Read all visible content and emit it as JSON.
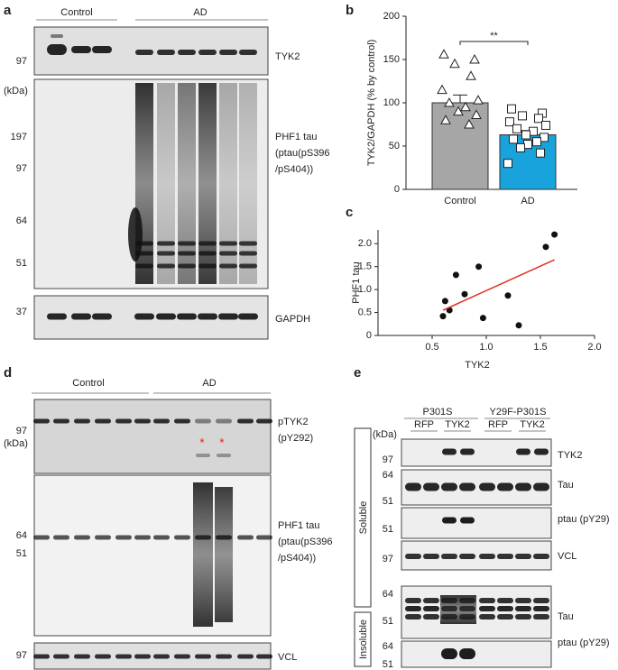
{
  "panel_a": {
    "letter": "a",
    "groups": [
      "Control",
      "AD"
    ],
    "kda": "(kDa)",
    "rows": [
      {
        "label_lines": [
          "TYK2"
        ],
        "markers": [
          97
        ]
      },
      {
        "label_lines": [
          "PHF1 tau",
          "(ptau(pS396",
          "/pS404))"
        ],
        "markers": [
          197,
          97,
          64,
          51
        ]
      },
      {
        "label_lines": [
          "GAPDH"
        ],
        "markers": [
          37
        ]
      }
    ]
  },
  "chart_data": [
    {
      "type": "bar",
      "letter": "b",
      "ylabel": "TYK2/GAPDH (% by control)",
      "categories": [
        "Control",
        "AD"
      ],
      "values": [
        100,
        63
      ],
      "errors": [
        9,
        5
      ],
      "colors": [
        "#a6a6a6",
        "#19a3dc"
      ],
      "significance": "**",
      "points": [
        [
          156,
          150,
          145,
          131,
          115,
          103,
          100,
          95,
          90,
          86,
          80,
          75
        ],
        [
          93,
          88,
          85,
          82,
          78,
          74,
          70,
          67,
          63,
          60,
          58,
          55,
          52,
          48,
          42,
          30
        ]
      ],
      "ylim": [
        0,
        200
      ],
      "yticks": [
        0,
        50,
        100,
        150,
        200
      ]
    },
    {
      "type": "scatter",
      "letter": "c",
      "xlabel": "TYK2",
      "ylabel": "PHF1 tau",
      "x": [
        0.6,
        0.62,
        0.66,
        0.72,
        0.8,
        0.93,
        0.97,
        1.2,
        1.3,
        1.55,
        1.63
      ],
      "values": [
        0.42,
        0.75,
        0.55,
        1.32,
        0.9,
        1.5,
        0.38,
        0.87,
        0.22,
        1.93,
        2.2
      ],
      "color": "#111111",
      "fit": {
        "x": [
          0.6,
          1.63
        ],
        "values": [
          0.55,
          1.65
        ],
        "color": "#e03020"
      },
      "xlim": [
        0,
        2
      ],
      "xticks": [
        0.5,
        {
          "value": 1,
          "label": "1.0"
        },
        1.5,
        {
          "value": 2,
          "label": "2.0"
        }
      ],
      "ylim": [
        0,
        2.3
      ],
      "yticks": [
        0,
        0.5,
        {
          "value": 1,
          "label": "1.0"
        },
        1.5,
        {
          "value": 2,
          "label": "2.0"
        }
      ]
    }
  ],
  "panel_d": {
    "letter": "d",
    "groups": [
      "Control",
      "AD"
    ],
    "kda": "(kDa)",
    "asterisks": [
      "*",
      "*"
    ],
    "rows": [
      {
        "label_lines": [
          "pTYK2",
          "(pY292)"
        ],
        "markers": [
          97
        ]
      },
      {
        "label_lines": [
          "PHF1 tau",
          "(ptau(pS396",
          "/pS404))"
        ],
        "markers": [
          64,
          51
        ]
      },
      {
        "label_lines": [
          "VCL"
        ],
        "markers": [
          97
        ]
      }
    ]
  },
  "panel_e": {
    "letter": "e",
    "groups": [
      "P301S",
      "Y29F-P301S"
    ],
    "lanes": [
      "RFP",
      "TYK2",
      "RFP",
      "TYK2"
    ],
    "kda": "(kDa)",
    "fractions": [
      "Soluble",
      "Insoluble"
    ],
    "rows": [
      {
        "label_lines": [
          "TYK2"
        ],
        "markers": [
          97
        ]
      },
      {
        "label_lines": [
          "Tau"
        ],
        "markers": [
          64,
          51
        ]
      },
      {
        "label_lines": [
          "ptau (pY29)"
        ],
        "markers": [
          51
        ]
      },
      {
        "label_lines": [
          "VCL"
        ],
        "markers": [
          97
        ]
      },
      {
        "label_lines": [
          "Tau"
        ],
        "markers": [
          64,
          51
        ]
      },
      {
        "label_lines": [
          "ptau (pY29)"
        ],
        "markers": [
          64,
          51
        ]
      }
    ]
  }
}
